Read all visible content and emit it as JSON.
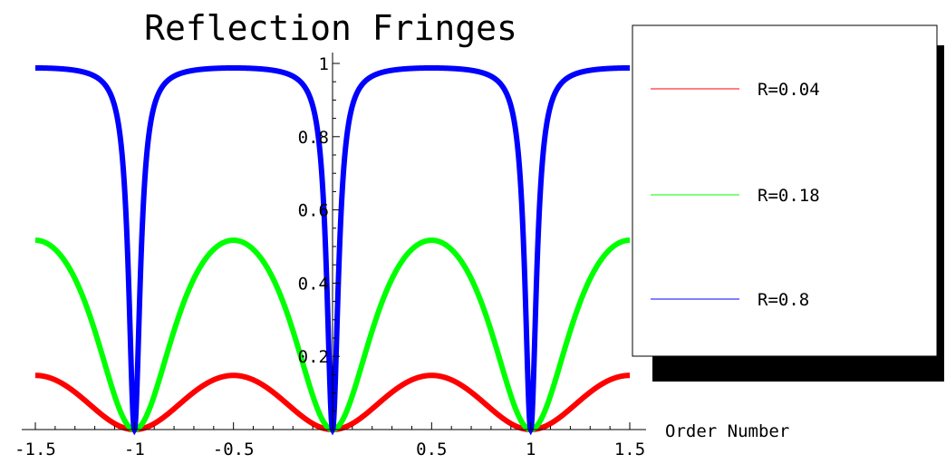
{
  "chart_data": {
    "type": "line",
    "title": "Reflection Fringes",
    "xlabel": "Order Number",
    "ylabel": "",
    "xlim": [
      -1.5,
      1.5
    ],
    "ylim": [
      0,
      1
    ],
    "x_ticks": [
      -1.5,
      -1,
      -0.5,
      0.5,
      1,
      1.5
    ],
    "x_tick_labels": [
      "-1.5",
      "-1",
      "-0.5",
      "0.5",
      "1",
      "1.5"
    ],
    "y_ticks": [
      0.2,
      0.4,
      0.6,
      0.8,
      1
    ],
    "y_tick_labels": [
      "0.2",
      "0.4",
      "0.6",
      "0.8",
      "1"
    ],
    "grid": false,
    "legend_position": "right",
    "series": [
      {
        "name": "R=0.04",
        "color": "#ff0000",
        "reflectance": 0.04,
        "x": [
          -1.5,
          -1.25,
          -1,
          -0.75,
          -0.5,
          -0.25,
          0,
          0.25,
          0.5,
          0.75,
          1,
          1.25,
          1.5
        ],
        "y": [
          0.148,
          0.08,
          0,
          0.08,
          0.148,
          0.08,
          0,
          0.08,
          0.148,
          0.08,
          0,
          0.08,
          0.148
        ]
      },
      {
        "name": "R=0.18",
        "color": "#00ff00",
        "reflectance": 0.18,
        "x": [
          -1.5,
          -1.25,
          -1,
          -0.75,
          -0.5,
          -0.25,
          0,
          0.25,
          0.5,
          0.75,
          1,
          1.25,
          1.5
        ],
        "y": [
          0.513,
          0.35,
          0,
          0.35,
          0.513,
          0.35,
          0,
          0.35,
          0.513,
          0.35,
          0,
          0.35,
          0.513
        ]
      },
      {
        "name": "R=0.8",
        "color": "#0000ff",
        "reflectance": 0.8,
        "x": [
          -1.5,
          -1.25,
          -1,
          -0.75,
          -0.5,
          -0.25,
          0,
          0.25,
          0.5,
          0.75,
          1,
          1.25,
          1.5
        ],
        "y": [
          0.988,
          0.953,
          0,
          0.953,
          0.988,
          0.953,
          0,
          0.953,
          0.988,
          0.953,
          0,
          0.953,
          0.988
        ]
      }
    ]
  }
}
